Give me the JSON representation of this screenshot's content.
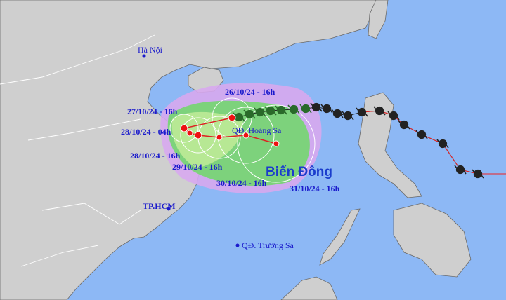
{
  "map": {
    "labels": {
      "ha_noi": "Hà Nội",
      "tp_hcm": "TP.HCM",
      "hoang_sa": "QĐ. Hoàng Sa",
      "truong_sa": "QĐ. Trường Sa",
      "sea": "Biển Đông"
    },
    "forecast_times": [
      "26/10/24 - 16h",
      "27/10/24 - 16h",
      "28/10/24 - 04h",
      "28/10/24 - 16h",
      "29/10/24 - 16h",
      "30/10/24 - 16h",
      "31/10/24 - 16h"
    ]
  }
}
